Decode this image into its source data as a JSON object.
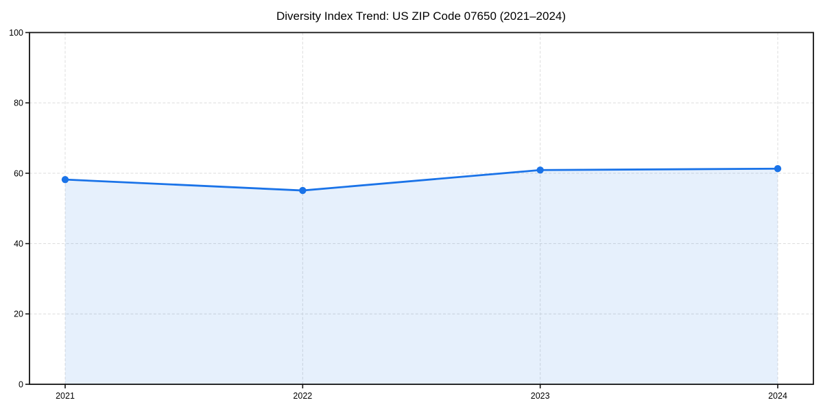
{
  "title": "Diversity Index Trend: US ZIP Code 07650 (2021–2024)",
  "chart_data": {
    "type": "area",
    "categories": [
      "2021",
      "2022",
      "2023",
      "2024"
    ],
    "series": [
      {
        "name": "Diversity Index",
        "values": [
          58.2,
          55.1,
          60.9,
          61.3
        ]
      }
    ],
    "title": "Diversity Index Trend: US ZIP Code 07650 (2021–2024)",
    "xlabel": "",
    "ylabel": "",
    "ylim": [
      0,
      100
    ],
    "yticks": [
      0,
      20,
      40,
      60,
      80,
      100
    ],
    "grid": true,
    "grid_style": "dashed",
    "legend": false,
    "marker": "circle",
    "colors": {
      "line": "#1a73e8",
      "marker": "#1a73e8",
      "fill": "#1a73e8",
      "fill_opacity": 0.11,
      "gridline": "#dfdfdf",
      "spine": "#111111",
      "tick_text": "#000000",
      "background": "#ffffff"
    }
  }
}
